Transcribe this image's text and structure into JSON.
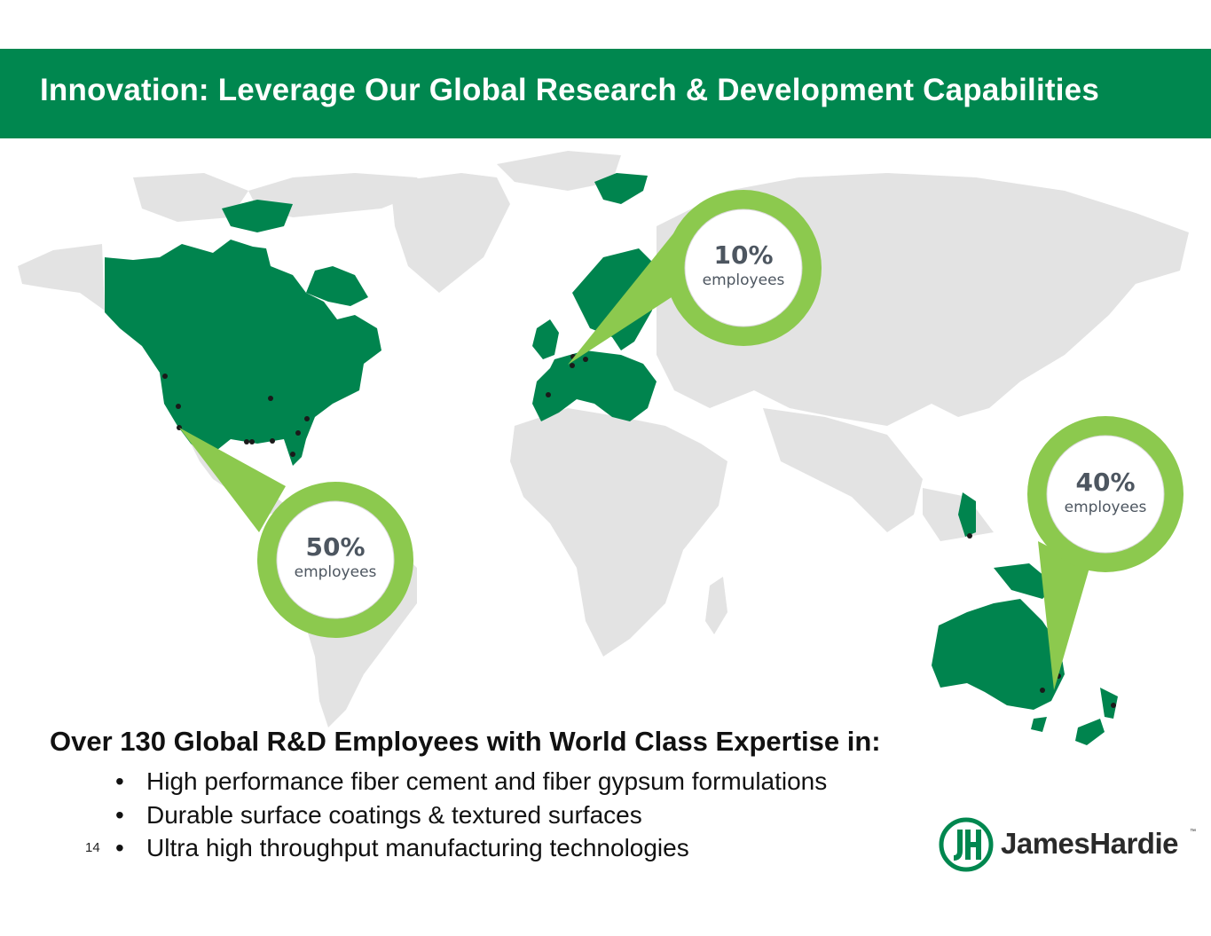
{
  "title": "Innovation:  Leverage Our Global Research & Development Capabilities",
  "regions": [
    {
      "name": "europe",
      "percent": "10%",
      "label": "employees"
    },
    {
      "name": "north-america",
      "percent": "50%",
      "label": "employees"
    },
    {
      "name": "asia-pacific",
      "percent": "40%",
      "label": "employees"
    }
  ],
  "headline": "Over 130 Global R&D Employees with World Class Expertise in:",
  "bullets": [
    "High performance fiber cement and fiber gypsum formulations",
    "Durable surface coatings & textured surfaces",
    "Ultra high throughput manufacturing technologies"
  ],
  "page_number": "14",
  "logo": {
    "text": "JamesHardie",
    "tm": "™",
    "mark_icon": "jh-monogram-icon"
  },
  "colors": {
    "header_green": "#00874f",
    "region_green": "#00844e",
    "pin_green": "#8cc94e",
    "land_gray": "#e3e3e3"
  }
}
